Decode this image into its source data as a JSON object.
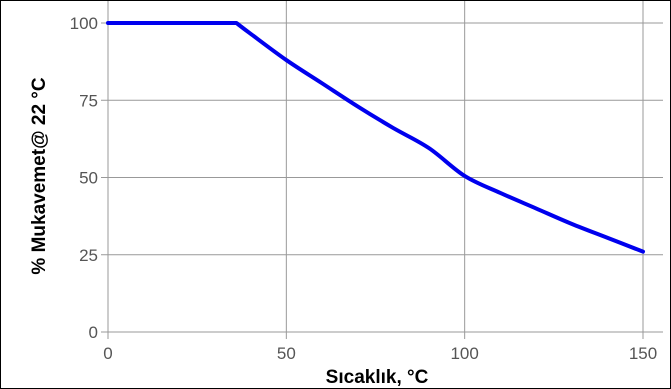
{
  "chart_data": {
    "type": "line",
    "title": "",
    "xlabel": "Sıcaklık, °C",
    "ylabel": "% Mukavemet@ 22 °C",
    "xlim": [
      0,
      150
    ],
    "ylim": [
      0,
      100
    ],
    "x_ticks": [
      0,
      50,
      100,
      150
    ],
    "y_ticks": [
      0,
      25,
      50,
      75,
      100
    ],
    "x_tick_labels": [
      "0",
      "50",
      "100",
      "150"
    ],
    "y_tick_labels": [
      "0",
      "25",
      "50",
      "75",
      "100"
    ],
    "grid": true,
    "legend": "none",
    "series": [
      {
        "color": "#0000ee",
        "x": [
          0,
          36,
          40,
          50,
          60,
          70,
          80,
          90,
          100,
          110,
          120,
          130,
          140,
          150
        ],
        "y": [
          100,
          100,
          96.5,
          88,
          80.5,
          73,
          66,
          59.5,
          50.5,
          45,
          40,
          35,
          30.5,
          26
        ]
      }
    ]
  }
}
